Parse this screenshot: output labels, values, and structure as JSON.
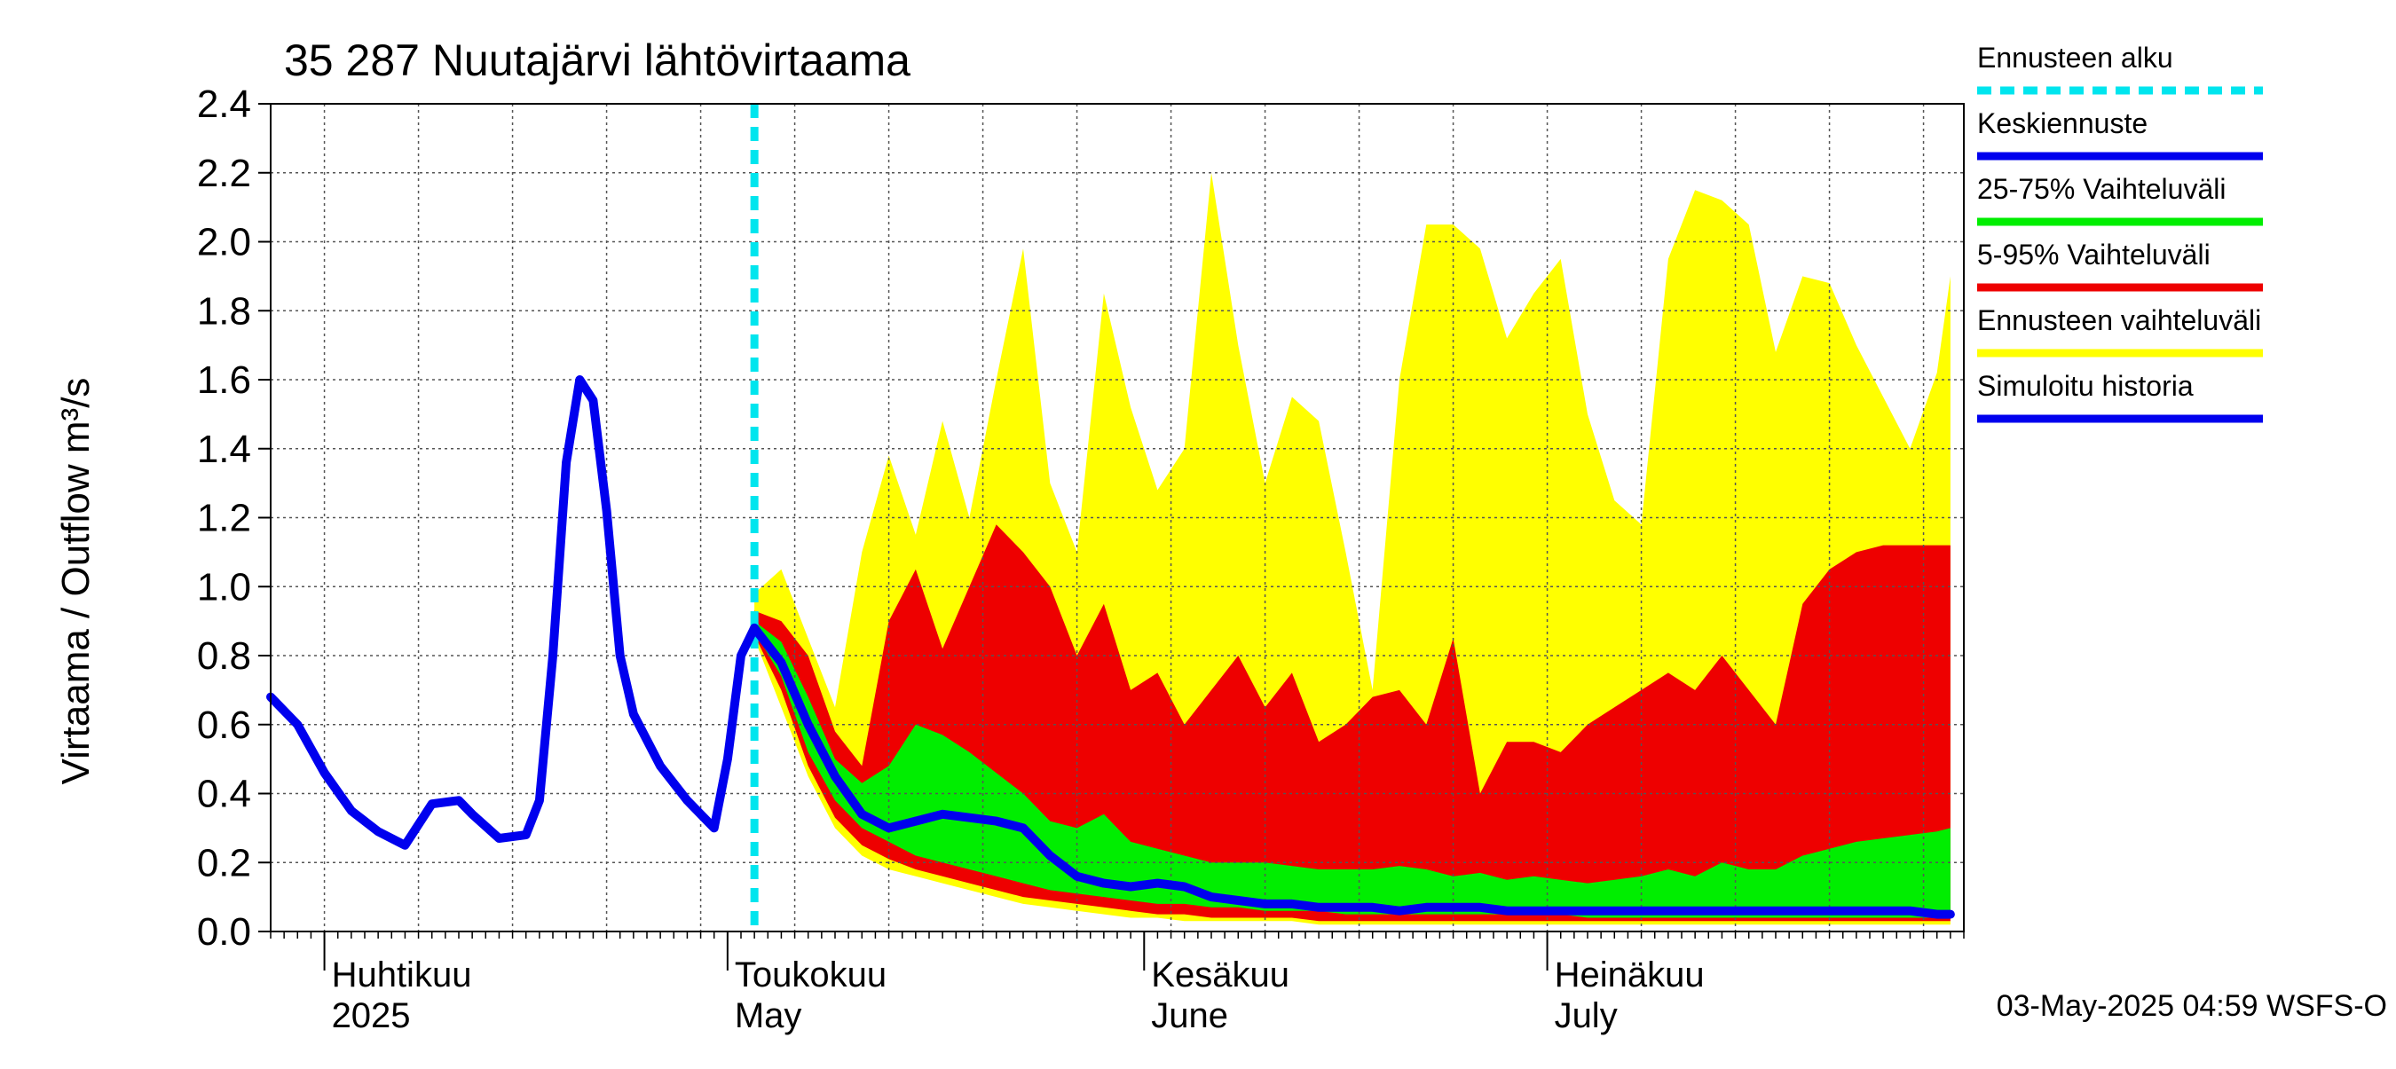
{
  "chart_data": {
    "type": "area",
    "title": "35 287 Nuutajärvi lähtövirtaama",
    "ylabel": "Virtaama / Outflow    m³/s",
    "ylim": [
      0,
      2.4
    ],
    "yticks": [
      "0.0",
      "0.2",
      "0.4",
      "0.6",
      "0.8",
      "1.0",
      "1.2",
      "1.4",
      "1.6",
      "1.8",
      "2.0",
      "2.2",
      "2.4"
    ],
    "grid": true,
    "legend_position": "right",
    "x_range": [
      "2025-03-28",
      "2025-07-31"
    ],
    "forecast_start": "2025-05-03",
    "month_labels": [
      {
        "date": "2025-04-01",
        "fi": "Huhtikuu",
        "en": "2025"
      },
      {
        "date": "2025-05-01",
        "fi": "Toukokuu",
        "en": "May"
      },
      {
        "date": "2025-06-01",
        "fi": "Kesäkuu",
        "en": "June"
      },
      {
        "date": "2025-07-01",
        "fi": "Heinäkuu",
        "en": "July"
      }
    ],
    "footer": "03-May-2025 04:59 WSFS-O",
    "legend": [
      {
        "key": "forecast_start",
        "label": "Ennusteen alku",
        "color": "#00E5EE",
        "dashed": true
      },
      {
        "key": "median",
        "label": "Keskiennuste",
        "color": "#0000EE"
      },
      {
        "key": "p25_75",
        "label": "25-75% Vaihteluväli",
        "color": "#00EE00"
      },
      {
        "key": "p5_95",
        "label": "5-95% Vaihteluväli",
        "color": "#EE0000"
      },
      {
        "key": "range",
        "label": "Ennusteen vaihteluväli",
        "color": "#FFFF00"
      },
      {
        "key": "history",
        "label": "Simuloitu historia",
        "color": "#0000EE"
      }
    ],
    "colors": {
      "history": "#0000EE",
      "median": "#0000EE",
      "p25_75": "#00EE00",
      "p5_95": "#EE0000",
      "range": "#FFFF00",
      "forecast_start": "#00E5EE",
      "grid": "#555555"
    },
    "history": {
      "x": [
        "2025-03-28",
        "2025-03-30",
        "2025-04-01",
        "2025-04-03",
        "2025-04-05",
        "2025-04-07",
        "2025-04-09",
        "2025-04-11",
        "2025-04-12",
        "2025-04-14",
        "2025-04-16",
        "2025-04-17",
        "2025-04-18",
        "2025-04-19",
        "2025-04-20",
        "2025-04-21",
        "2025-04-22",
        "2025-04-23",
        "2025-04-24",
        "2025-04-26",
        "2025-04-28",
        "2025-04-30",
        "2025-05-01",
        "2025-05-02",
        "2025-05-03"
      ],
      "y": [
        0.68,
        0.6,
        0.46,
        0.35,
        0.29,
        0.25,
        0.37,
        0.38,
        0.34,
        0.27,
        0.28,
        0.38,
        0.8,
        1.36,
        1.6,
        1.54,
        1.22,
        0.8,
        0.63,
        0.48,
        0.38,
        0.3,
        0.5,
        0.8,
        0.88
      ]
    },
    "series_x": [
      "2025-05-03",
      "2025-05-05",
      "2025-05-07",
      "2025-05-09",
      "2025-05-11",
      "2025-05-13",
      "2025-05-15",
      "2025-05-17",
      "2025-05-19",
      "2025-05-21",
      "2025-05-23",
      "2025-05-25",
      "2025-05-27",
      "2025-05-29",
      "2025-05-31",
      "2025-06-02",
      "2025-06-04",
      "2025-06-06",
      "2025-06-08",
      "2025-06-10",
      "2025-06-12",
      "2025-06-14",
      "2025-06-16",
      "2025-06-18",
      "2025-06-20",
      "2025-06-22",
      "2025-06-24",
      "2025-06-26",
      "2025-06-28",
      "2025-06-30",
      "2025-07-02",
      "2025-07-04",
      "2025-07-06",
      "2025-07-08",
      "2025-07-10",
      "2025-07-12",
      "2025-07-14",
      "2025-07-16",
      "2025-07-18",
      "2025-07-20",
      "2025-07-22",
      "2025-07-24",
      "2025-07-26",
      "2025-07-28",
      "2025-07-30",
      "2025-07-31"
    ],
    "range_upper": [
      0.98,
      1.05,
      0.85,
      0.65,
      1.1,
      1.38,
      1.15,
      1.48,
      1.2,
      1.6,
      1.98,
      1.3,
      1.1,
      1.85,
      1.52,
      1.28,
      1.4,
      2.2,
      1.7,
      1.3,
      1.55,
      1.48,
      1.1,
      0.7,
      1.6,
      2.05,
      2.05,
      1.98,
      1.72,
      1.85,
      1.95,
      1.5,
      1.25,
      1.18,
      1.95,
      2.15,
      2.12,
      2.05,
      1.68,
      1.9,
      1.88,
      1.7,
      1.55,
      1.4,
      1.62,
      1.9
    ],
    "range_lower": [
      0.85,
      0.65,
      0.45,
      0.3,
      0.22,
      0.18,
      0.16,
      0.14,
      0.12,
      0.1,
      0.08,
      0.07,
      0.06,
      0.05,
      0.04,
      0.04,
      0.03,
      0.03,
      0.03,
      0.03,
      0.03,
      0.02,
      0.02,
      0.02,
      0.02,
      0.02,
      0.02,
      0.02,
      0.02,
      0.02,
      0.02,
      0.02,
      0.02,
      0.02,
      0.02,
      0.02,
      0.02,
      0.02,
      0.02,
      0.02,
      0.02,
      0.02,
      0.02,
      0.02,
      0.02,
      0.02
    ],
    "p5_95_upper": [
      0.93,
      0.9,
      0.8,
      0.58,
      0.48,
      0.9,
      1.05,
      0.82,
      1.0,
      1.18,
      1.1,
      1.0,
      0.8,
      0.95,
      0.7,
      0.75,
      0.6,
      0.7,
      0.8,
      0.65,
      0.75,
      0.55,
      0.6,
      0.68,
      0.7,
      0.6,
      0.85,
      0.4,
      0.55,
      0.55,
      0.52,
      0.6,
      0.65,
      0.7,
      0.75,
      0.7,
      0.8,
      0.7,
      0.6,
      0.95,
      1.05,
      1.1,
      1.12,
      1.12,
      1.12,
      1.12
    ],
    "p5_95_lower": [
      0.86,
      0.7,
      0.48,
      0.33,
      0.25,
      0.21,
      0.18,
      0.16,
      0.14,
      0.12,
      0.1,
      0.09,
      0.08,
      0.07,
      0.06,
      0.05,
      0.05,
      0.04,
      0.04,
      0.04,
      0.04,
      0.03,
      0.03,
      0.03,
      0.03,
      0.03,
      0.03,
      0.03,
      0.03,
      0.03,
      0.03,
      0.03,
      0.03,
      0.03,
      0.03,
      0.03,
      0.03,
      0.03,
      0.03,
      0.03,
      0.03,
      0.03,
      0.03,
      0.03,
      0.03,
      0.03
    ],
    "p25_75_upper": [
      0.9,
      0.84,
      0.68,
      0.5,
      0.43,
      0.48,
      0.6,
      0.57,
      0.52,
      0.46,
      0.4,
      0.32,
      0.3,
      0.34,
      0.26,
      0.24,
      0.22,
      0.2,
      0.2,
      0.2,
      0.19,
      0.18,
      0.18,
      0.18,
      0.19,
      0.18,
      0.16,
      0.17,
      0.15,
      0.16,
      0.15,
      0.14,
      0.15,
      0.16,
      0.18,
      0.16,
      0.2,
      0.18,
      0.18,
      0.22,
      0.24,
      0.26,
      0.27,
      0.28,
      0.29,
      0.3
    ],
    "p25_75_lower": [
      0.87,
      0.74,
      0.52,
      0.38,
      0.3,
      0.26,
      0.22,
      0.2,
      0.18,
      0.16,
      0.14,
      0.12,
      0.11,
      0.1,
      0.09,
      0.08,
      0.08,
      0.07,
      0.07,
      0.06,
      0.06,
      0.06,
      0.05,
      0.05,
      0.05,
      0.05,
      0.05,
      0.05,
      0.05,
      0.05,
      0.05,
      0.04,
      0.04,
      0.04,
      0.04,
      0.04,
      0.04,
      0.04,
      0.04,
      0.04,
      0.04,
      0.04,
      0.04,
      0.04,
      0.04,
      0.04
    ],
    "median": [
      0.88,
      0.78,
      0.6,
      0.45,
      0.34,
      0.3,
      0.32,
      0.34,
      0.33,
      0.32,
      0.3,
      0.22,
      0.16,
      0.14,
      0.13,
      0.14,
      0.13,
      0.1,
      0.09,
      0.08,
      0.08,
      0.07,
      0.07,
      0.07,
      0.06,
      0.07,
      0.07,
      0.07,
      0.06,
      0.06,
      0.06,
      0.06,
      0.06,
      0.06,
      0.06,
      0.06,
      0.06,
      0.06,
      0.06,
      0.06,
      0.06,
      0.06,
      0.06,
      0.06,
      0.05,
      0.05
    ]
  }
}
